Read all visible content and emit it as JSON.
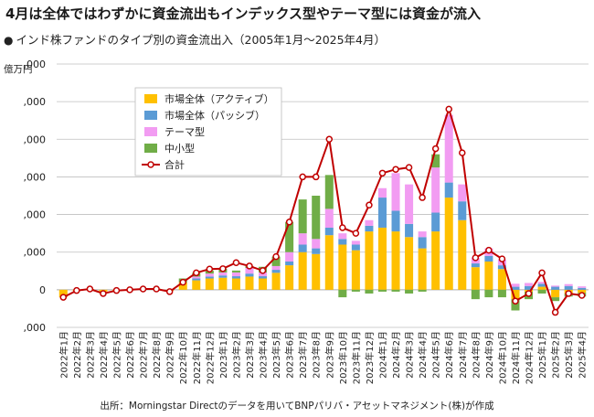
{
  "headline": "4月は全体ではわずかに資金流出もインデックス型やテーマ型には資金が流入",
  "subtitle": "インド株ファンドのタイプ別の資金流出入（2005年1月〜2025年4月）",
  "bullet": "●",
  "source": "出所：Morningstar Directのデータを用いてBNPパリバ・アセットマネジメント(株)が作成",
  "colors": {
    "active": "#FFC000",
    "passive": "#5B9BD5",
    "theme": "#F29CF2",
    "small": "#70AD47",
    "total": "#C00000",
    "grid": "#BFBFBF"
  },
  "chart_data": {
    "type": "bar",
    "stacked": true,
    "ylabel": "億万円",
    "yticks_display": [
      ",000",
      ",000",
      ",000",
      ",000",
      ",000",
      "0",
      ",000"
    ],
    "ytick_values": [
      6000,
      5000,
      4000,
      3000,
      2000,
      1000,
      0,
      -1000
    ],
    "ytick_labels": [
      ",000",
      ",000",
      ",000",
      ",000",
      ",000",
      ",000",
      "0",
      ",000"
    ],
    "ylim": [
      -1000,
      6000
    ],
    "legend_position": "top-left",
    "categories": [
      "2022年1月",
      "2022年2月",
      "2022年3月",
      "2022年4月",
      "2022年5月",
      "2022年6月",
      "2022年7月",
      "2022年8月",
      "2022年9月",
      "2022年10月",
      "2022年11月",
      "2022年12月",
      "2023年1月",
      "2023年2月",
      "2023年3月",
      "2023年4月",
      "2023年5月",
      "2023年6月",
      "2023年7月",
      "2023年8月",
      "2023年9月",
      "2023年10月",
      "2023年11月",
      "2023年12月",
      "2024年1月",
      "2024年2月",
      "2024年3月",
      "2024年4月",
      "2024年5月",
      "2024年6月",
      "2024年7月",
      "2024年8月",
      "2024年9月",
      "2024年10月",
      "2024年11月",
      "2024年12月",
      "2025年1月",
      "2025年2月",
      "2025年3月",
      "2025年4月"
    ],
    "series": [
      {
        "name": "市場全体（アクティブ）",
        "key": "active",
        "values": [
          -200,
          -20,
          20,
          -50,
          -20,
          0,
          20,
          30,
          -30,
          200,
          250,
          300,
          320,
          300,
          350,
          300,
          450,
          650,
          1000,
          950,
          1450,
          1200,
          1050,
          1550,
          1650,
          1550,
          1400,
          1100,
          1550,
          2450,
          1850,
          600,
          750,
          550,
          -250,
          -50,
          80,
          -200,
          -100,
          -80
        ]
      },
      {
        "name": "市場全体（パッシブ）",
        "key": "passive",
        "values": [
          0,
          0,
          0,
          0,
          0,
          0,
          0,
          0,
          0,
          0,
          50,
          50,
          60,
          60,
          80,
          60,
          80,
          100,
          200,
          150,
          200,
          150,
          150,
          150,
          800,
          550,
          350,
          300,
          500,
          400,
          500,
          100,
          150,
          100,
          80,
          100,
          80,
          80,
          100,
          50
        ]
      },
      {
        "name": "テーマ型",
        "key": "theme",
        "values": [
          0,
          0,
          0,
          0,
          0,
          0,
          0,
          0,
          0,
          0,
          50,
          80,
          80,
          100,
          150,
          100,
          100,
          250,
          300,
          250,
          500,
          150,
          100,
          150,
          250,
          1000,
          1050,
          150,
          1200,
          1800,
          450,
          150,
          200,
          150,
          80,
          80,
          50,
          30,
          50,
          40
        ]
      },
      {
        "name": "中小型",
        "key": "small",
        "values": [
          0,
          0,
          0,
          0,
          0,
          0,
          0,
          0,
          0,
          100,
          100,
          80,
          100,
          50,
          50,
          150,
          250,
          800,
          900,
          1150,
          900,
          -200,
          -50,
          -100,
          -50,
          -50,
          -100,
          -50,
          350,
          0,
          0,
          -250,
          -200,
          -200,
          -300,
          -200,
          -100,
          -100,
          -80,
          -100
        ]
      },
      {
        "name": "合計",
        "key": "total",
        "kind": "line",
        "values": [
          -200,
          -20,
          20,
          -100,
          -20,
          0,
          20,
          20,
          -50,
          200,
          450,
          550,
          560,
          720,
          630,
          510,
          880,
          1800,
          3000,
          3000,
          4000,
          1650,
          1500,
          2250,
          3100,
          3200,
          3250,
          2450,
          3750,
          4800,
          3640,
          850,
          1050,
          820,
          -300,
          -100,
          450,
          -600,
          -100,
          -150
        ]
      }
    ]
  }
}
